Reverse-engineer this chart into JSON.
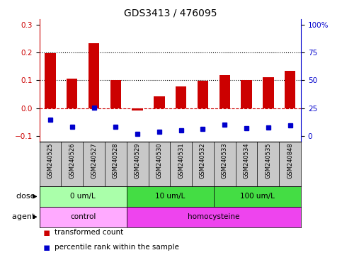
{
  "title": "GDS3413 / 476095",
  "samples": [
    "GSM240525",
    "GSM240526",
    "GSM240527",
    "GSM240528",
    "GSM240529",
    "GSM240530",
    "GSM240531",
    "GSM240532",
    "GSM240533",
    "GSM240534",
    "GSM240535",
    "GSM240848"
  ],
  "red_values": [
    0.197,
    0.105,
    0.232,
    0.1,
    -0.01,
    0.043,
    0.078,
    0.097,
    0.118,
    0.1,
    0.11,
    0.135
  ],
  "blue_values": [
    -0.043,
    -0.068,
    0.002,
    -0.068,
    -0.093,
    -0.085,
    -0.08,
    -0.075,
    -0.06,
    -0.072,
    -0.07,
    -0.062
  ],
  "ylim": [
    -0.12,
    0.32
  ],
  "yticks_left": [
    -0.1,
    0.0,
    0.1,
    0.2,
    0.3
  ],
  "yticks_right": [
    0,
    25,
    50,
    75,
    100
  ],
  "red_color": "#CC0000",
  "blue_color": "#0000CC",
  "dotted_lines": [
    0.1,
    0.2
  ],
  "dose_groups": [
    {
      "label": "0 um/L",
      "start": 0,
      "end": 4,
      "color": "#AAFFAA"
    },
    {
      "label": "10 um/L",
      "start": 4,
      "end": 8,
      "color": "#44DD44"
    },
    {
      "label": "100 um/L",
      "start": 8,
      "end": 12,
      "color": "#44DD44"
    }
  ],
  "agent_groups": [
    {
      "label": "control",
      "start": 0,
      "end": 4,
      "color": "#FFAAFF"
    },
    {
      "label": "homocysteine",
      "start": 4,
      "end": 12,
      "color": "#EE44EE"
    }
  ],
  "dose_label": "dose",
  "agent_label": "agent",
  "legend_red": "transformed count",
  "legend_blue": "percentile rank within the sample",
  "sample_bg": "#C8C8C8",
  "bar_width": 0.5
}
